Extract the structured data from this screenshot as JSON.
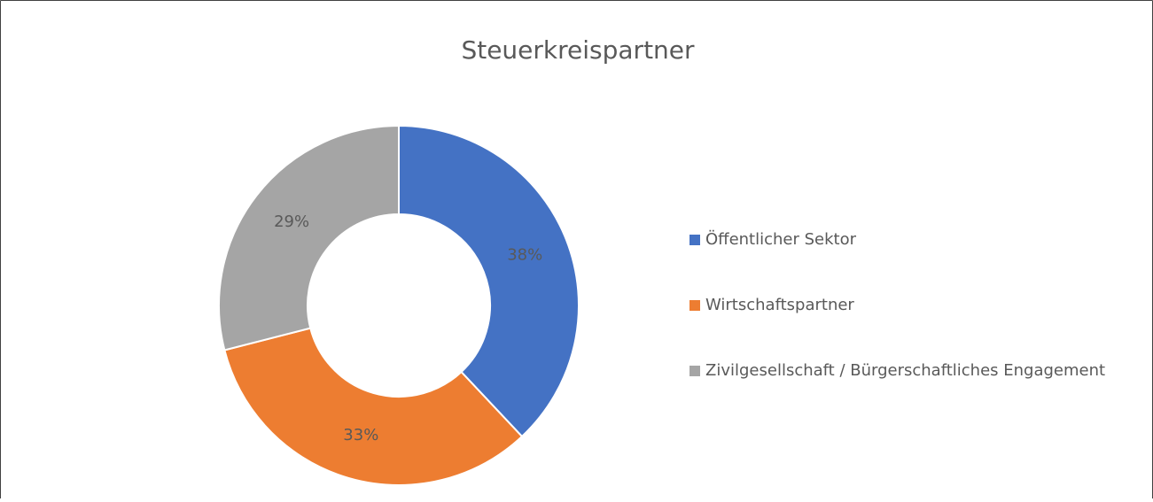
{
  "chart_data": {
    "type": "donut",
    "title": "Steuerkreispartner",
    "categories": [
      "Öffentlicher Sektor",
      "Wirtschaftspartner",
      "Zivilgesellschaft / Bürgerschaftliches Engagement"
    ],
    "values": [
      38,
      33,
      29
    ],
    "value_labels": [
      "38%",
      "33%",
      "29%"
    ],
    "colors": [
      "#4472c4",
      "#ed7d31",
      "#a5a5a5"
    ],
    "legend": "right"
  }
}
